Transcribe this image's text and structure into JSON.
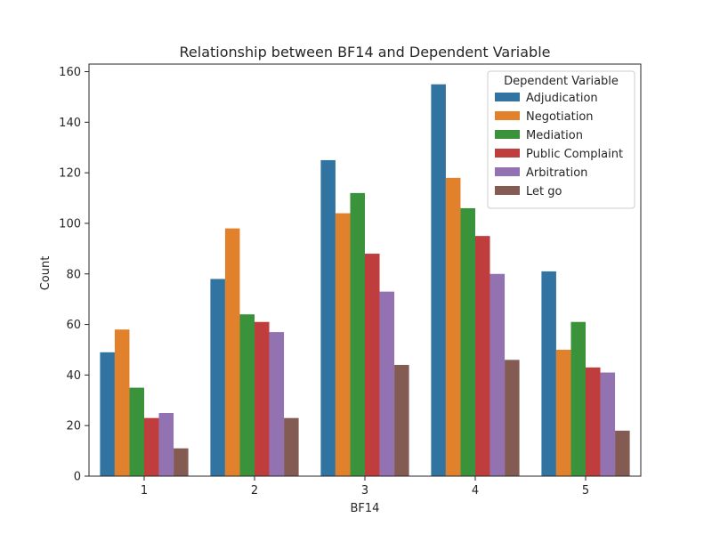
{
  "chart_data": {
    "type": "bar",
    "title": "Relationship between BF14 and Dependent Variable",
    "xlabel": "BF14",
    "ylabel": "Count",
    "categories": [
      "1",
      "2",
      "3",
      "4",
      "5"
    ],
    "ylim": [
      0,
      163
    ],
    "yticks": [
      "0",
      "20",
      "40",
      "60",
      "80",
      "100",
      "120",
      "140",
      "160"
    ],
    "grid": false,
    "legend": {
      "title": "Dependent Variable",
      "placement": "top-right"
    },
    "series": [
      {
        "name": "Adjudication",
        "color": "#3274a1",
        "values": [
          49,
          78,
          125,
          155,
          81
        ]
      },
      {
        "name": "Negotiation",
        "color": "#e1812c",
        "values": [
          58,
          98,
          104,
          118,
          50
        ]
      },
      {
        "name": "Mediation",
        "color": "#3a923a",
        "values": [
          35,
          64,
          112,
          106,
          61
        ]
      },
      {
        "name": "Public Complaint",
        "color": "#c03d3e",
        "values": [
          23,
          61,
          88,
          95,
          43
        ]
      },
      {
        "name": "Arbitration",
        "color": "#9372b2",
        "values": [
          25,
          57,
          73,
          80,
          41
        ]
      },
      {
        "name": "Let go",
        "color": "#845b53",
        "values": [
          11,
          23,
          44,
          46,
          18
        ]
      }
    ]
  }
}
